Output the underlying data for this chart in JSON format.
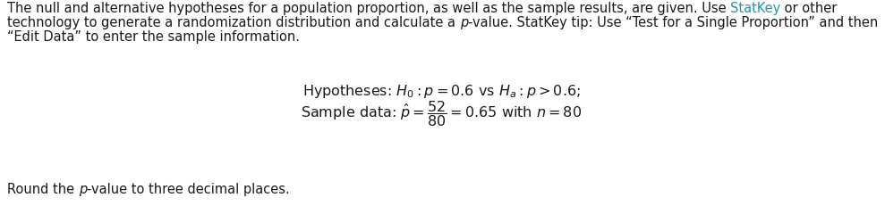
{
  "bg_color": "#ffffff",
  "normal_color": "#1a1a1a",
  "statkey_color": "#2196a8",
  "italic_color": "#1a1a1a",
  "font_size": 10.5,
  "font_size_math": 11.5,
  "font_size_bottom": 10.5,
  "line1_normal": "The null and alternative hypotheses for a population proportion, as well as the sample results, are given. Use ",
  "line1_statkey": "StatKey",
  "line1_end": " or other",
  "line2_start": "technology to generate a randomization distribution and calculate a ",
  "line2_end": "-value. StatKey tip: Use “Test for a Single Proportion” and then",
  "line3": "“Edit Data” to enter the sample information.",
  "hyp_text": "Hypotheses: $H_0 : p = 0.6$ vs $H_a : p > 0.6;$",
  "sample_text": "Sample data: $\\hat{p} = \\dfrac{52}{80} = 0.65$ with $n = 80$",
  "bottom_start": "Round the ",
  "bottom_end": "-value to three decimal places.",
  "fig_width": 9.89,
  "fig_height": 2.31,
  "dpi": 100
}
